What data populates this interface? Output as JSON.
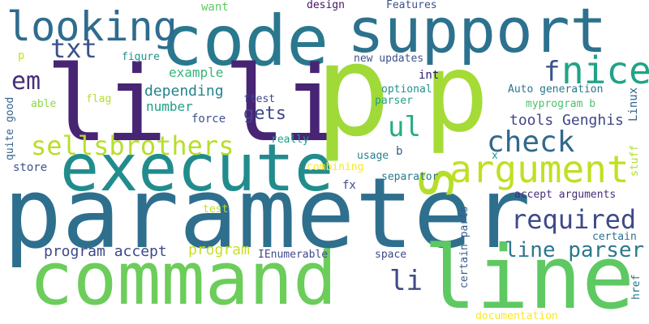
{
  "words": {
    "parameter": {
      "text": "parameter",
      "color": "#2e6f8e"
    },
    "command": {
      "text": "command",
      "color": "#6ccd5a"
    },
    "line_big": {
      "text": "line",
      "color": "#5ec962"
    },
    "execute": {
      "text": "execute",
      "color": "#228c8d"
    },
    "code": {
      "text": "code",
      "color": "#2a788e"
    },
    "support": {
      "text": "support",
      "color": "#2c728e"
    },
    "p1": {
      "text": "p",
      "color": "#a0da39"
    },
    "p2": {
      "text": "p",
      "color": "#a5db36"
    },
    "li_big": {
      "text": "li li",
      "color": "#482475"
    },
    "s": {
      "text": "s",
      "color": "#b5de2b"
    },
    "argument": {
      "text": "argument",
      "color": "#c2df23"
    },
    "looking": {
      "text": "looking",
      "color": "#2f6c8e"
    },
    "sellsbrothers": {
      "text": "sellsbrothers",
      "color": "#b8de29"
    },
    "check": {
      "text": "check",
      "color": "#31688e"
    },
    "required": {
      "text": "required",
      "color": "#3e4989"
    },
    "line_parser": {
      "text": "line parser",
      "color": "#2a788e"
    },
    "ul": {
      "text": "ul",
      "color": "#27ad81"
    },
    "nice": {
      "text": "nice",
      "color": "#20a386"
    },
    "f": {
      "text": "f",
      "color": "#3b528b"
    },
    "txt": {
      "text": "txt",
      "color": "#3b528b"
    },
    "em": {
      "text": "em",
      "color": "#472d7b"
    },
    "tools_genghis": {
      "text": "tools Genghis",
      "color": "#404688"
    },
    "li_small": {
      "text": "li",
      "color": "#3e4a89"
    },
    "gets": {
      "text": "gets",
      "color": "#3f4788"
    },
    "program_accept": {
      "text": "program accept",
      "color": "#3e4989"
    },
    "program": {
      "text": "program",
      "color": "#c8e020"
    },
    "depending": {
      "text": "depending",
      "color": "#26828e"
    },
    "example": {
      "text": "example",
      "color": "#32b67a"
    },
    "number": {
      "text": "number",
      "color": "#1fa088"
    },
    "force": {
      "text": "force",
      "color": "#3a548c"
    },
    "want": {
      "text": "want",
      "color": "#5ec962"
    },
    "design": {
      "text": "design",
      "color": "#471365"
    },
    "features": {
      "text": "Features",
      "color": "#3b528b"
    },
    "new_updates": {
      "text": "new updates",
      "color": "#3b528b"
    },
    "int": {
      "text": "int",
      "color": "#2d1e73"
    },
    "optional": {
      "text": "optional",
      "color": "#21918c"
    },
    "parser": {
      "text": "parser",
      "color": "#1f9e89"
    },
    "auto_generation": {
      "text": "Auto generation",
      "color": "#2a778e"
    },
    "myprogram": {
      "text": "myprogram b",
      "color": "#4ac16d"
    },
    "linux": {
      "text": "Linux",
      "color": "#33638d"
    },
    "figure": {
      "text": "figure",
      "color": "#21918c"
    },
    "p_small": {
      "text": "p",
      "color": "#cde11d"
    },
    "able": {
      "text": "able",
      "color": "#8fd744"
    },
    "flag": {
      "text": "flag",
      "color": "#b5de2b"
    },
    "ftest": {
      "text": "ftest",
      "color": "#404688"
    },
    "really": {
      "text": "really",
      "color": "#1f9e89"
    },
    "usage": {
      "text": "usage",
      "color": "#26828e"
    },
    "b": {
      "text": "b",
      "color": "#365d8d"
    },
    "x": {
      "text": "x",
      "color": "#1f968b"
    },
    "combining": {
      "text": "combining",
      "color": "#fde725"
    },
    "separator": {
      "text": "separator",
      "color": "#2a788e"
    },
    "fx": {
      "text": "fx",
      "color": "#3e4a89"
    },
    "certain_parts": {
      "text": "certain parts",
      "color": "#365c8d"
    },
    "accept_arguments": {
      "text": "accept arguments",
      "color": "#472c7a"
    },
    "certain": {
      "text": "certain",
      "color": "#2c728e"
    },
    "test": {
      "text": "test",
      "color": "#c2df23"
    },
    "ienumerable": {
      "text": "IEnumerable",
      "color": "#3f4889"
    },
    "space": {
      "text": "space",
      "color": "#3e4a89"
    },
    "store": {
      "text": "store",
      "color": "#3a538b"
    },
    "quite_good": {
      "text": "quite good",
      "color": "#33638d"
    },
    "stuff": {
      "text": "stuff",
      "color": "#b0dd2f"
    },
    "href": {
      "text": "href",
      "color": "#2c728e"
    },
    "documentation": {
      "text": "documentation",
      "color": "#fde725"
    }
  }
}
